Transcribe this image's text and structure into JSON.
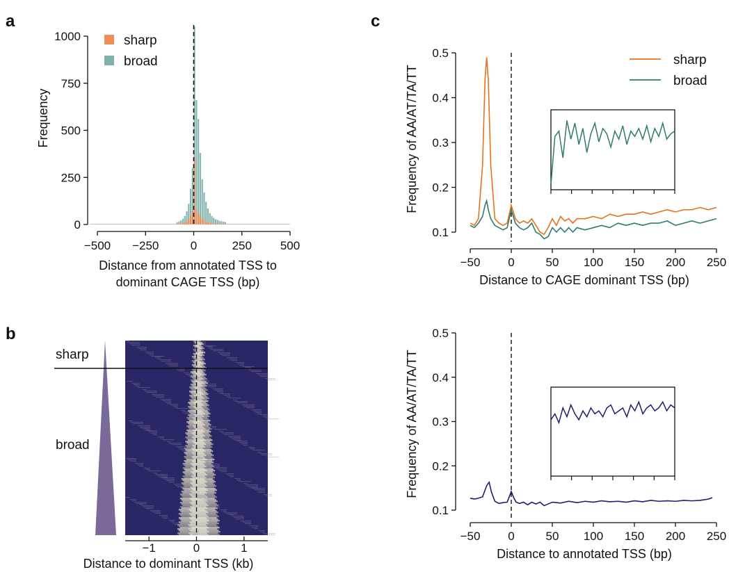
{
  "panels": {
    "a": "a",
    "b": "b",
    "c": "c"
  },
  "colors": {
    "sharp": "#ef8d57",
    "broad": "#7fb2ad",
    "sharp_line": "#e8701d",
    "broad_line": "#2e7a6e",
    "annotated_line": "#1c1f6e",
    "pyramid": "#7a6a9a",
    "heat_low": "#2a2766",
    "heat_high": "#f1ecc7"
  },
  "chart_data": [
    {
      "id": "a",
      "type": "bar",
      "xlabel": "Distance from annotated TSS to\ndominant CAGE TSS (bp)",
      "xlabel_lines": [
        "Distance from annotated TSS to",
        "dominant CAGE TSS (bp)"
      ],
      "ylabel": "Frequency",
      "xlim": [
        -550,
        500
      ],
      "ylim": [
        0,
        1050
      ],
      "xticks": [
        -500,
        -250,
        0,
        250,
        500
      ],
      "xtick_labels": [
        "−500",
        "−250",
        "0",
        "250",
        "500"
      ],
      "yticks": [
        0,
        250,
        500,
        750,
        1000
      ],
      "ytick_labels": [
        "0",
        "250",
        "500",
        "750",
        "1000"
      ],
      "legend": [
        "sharp",
        "broad"
      ],
      "bin_width": 10,
      "x": [
        -90,
        -80,
        -70,
        -60,
        -50,
        -40,
        -30,
        -20,
        -10,
        0,
        10,
        20,
        30,
        40,
        50,
        60,
        70,
        80,
        90,
        100,
        110,
        120,
        130,
        140,
        150,
        160
      ],
      "series": [
        {
          "name": "broad",
          "values": [
            12,
            16,
            22,
            30,
            45,
            70,
            110,
            190,
            300,
            1050,
            660,
            560,
            380,
            240,
            170,
            120,
            85,
            60,
            45,
            35,
            28,
            24,
            20,
            17,
            15,
            13
          ]
        },
        {
          "name": "sharp",
          "values": [
            4,
            5,
            6,
            8,
            12,
            18,
            28,
            45,
            70,
            350,
            80,
            60,
            45,
            30,
            22,
            16,
            12,
            9,
            7,
            6,
            5,
            4,
            4,
            3,
            3,
            3
          ]
        }
      ],
      "reference_line_x": 0
    },
    {
      "id": "b",
      "type": "heatmap",
      "xlabel": "Distance to dominant TSS (kb)",
      "xlim": [
        -1.5,
        1.5
      ],
      "xticks": [
        -1,
        0,
        1
      ],
      "xtick_labels": [
        "−1",
        "0",
        "1"
      ],
      "row_groups": [
        "sharp",
        "broad"
      ],
      "reference_line_x": 0
    },
    {
      "id": "c-top",
      "type": "line",
      "xlabel": "Distance to CAGE dominant TSS (bp)",
      "ylabel": "Frequency of AA/AT/TA/TT",
      "xlim": [
        -50,
        250
      ],
      "ylim": [
        0.1,
        0.5
      ],
      "xticks": [
        -50,
        0,
        50,
        100,
        150,
        200,
        250
      ],
      "xtick_labels": [
        "−50",
        "0",
        "50",
        "100",
        "150",
        "200",
        "250"
      ],
      "yticks": [
        0.1,
        0.2,
        0.3,
        0.4,
        0.5
      ],
      "ytick_labels": [
        "0.1",
        "0.2",
        "0.3",
        "0.4",
        "0.5"
      ],
      "legend": [
        "sharp",
        "broad"
      ],
      "legend_position": "top-right",
      "reference_line_x": 0,
      "x": [
        -50,
        -45,
        -40,
        -35,
        -32,
        -30,
        -28,
        -25,
        -20,
        -15,
        -10,
        -5,
        0,
        5,
        10,
        15,
        20,
        25,
        30,
        35,
        40,
        45,
        50,
        55,
        60,
        65,
        70,
        75,
        80,
        90,
        100,
        110,
        120,
        130,
        140,
        150,
        160,
        170,
        180,
        190,
        200,
        210,
        220,
        230,
        240,
        250
      ],
      "series": [
        {
          "name": "sharp",
          "values": [
            0.12,
            0.115,
            0.13,
            0.25,
            0.44,
            0.49,
            0.44,
            0.25,
            0.13,
            0.12,
            0.115,
            0.12,
            0.16,
            0.13,
            0.12,
            0.125,
            0.12,
            0.13,
            0.115,
            0.1,
            0.095,
            0.11,
            0.13,
            0.115,
            0.135,
            0.125,
            0.13,
            0.12,
            0.13,
            0.13,
            0.135,
            0.13,
            0.14,
            0.135,
            0.14,
            0.14,
            0.145,
            0.14,
            0.145,
            0.15,
            0.145,
            0.15,
            0.15,
            0.155,
            0.15,
            0.155
          ]
        },
        {
          "name": "broad",
          "values": [
            0.115,
            0.11,
            0.12,
            0.135,
            0.16,
            0.17,
            0.15,
            0.13,
            0.115,
            0.11,
            0.105,
            0.11,
            0.15,
            0.12,
            0.11,
            0.105,
            0.11,
            0.12,
            0.1,
            0.095,
            0.085,
            0.09,
            0.11,
            0.1,
            0.11,
            0.1,
            0.11,
            0.1,
            0.11,
            0.105,
            0.11,
            0.115,
            0.11,
            0.12,
            0.115,
            0.12,
            0.115,
            0.12,
            0.12,
            0.125,
            0.115,
            0.12,
            0.125,
            0.12,
            0.125,
            0.13
          ]
        }
      ],
      "inset": {
        "series": "broad",
        "values": [
          0.1,
          0.28,
          0.3,
          0.2,
          0.34,
          0.27,
          0.33,
          0.25,
          0.31,
          0.22,
          0.29,
          0.33,
          0.26,
          0.31,
          0.29,
          0.24,
          0.3,
          0.27,
          0.32,
          0.25,
          0.3,
          0.28,
          0.31,
          0.27,
          0.32,
          0.26,
          0.31,
          0.28,
          0.33,
          0.27,
          0.29,
          0.3
        ]
      }
    },
    {
      "id": "c-bottom",
      "type": "line",
      "xlabel": "Distance to annotated TSS (bp)",
      "ylabel": "Frequency of AA/AT/TA/TT",
      "xlim": [
        -50,
        250
      ],
      "ylim": [
        0.1,
        0.5
      ],
      "xticks": [
        -50,
        0,
        50,
        100,
        150,
        200,
        250
      ],
      "xtick_labels": [
        "−50",
        "0",
        "50",
        "100",
        "150",
        "200",
        "250"
      ],
      "yticks": [
        0.1,
        0.2,
        0.3,
        0.4,
        0.5
      ],
      "ytick_labels": [
        "0.1",
        "0.2",
        "0.3",
        "0.4",
        "0.5"
      ],
      "reference_line_x": 0,
      "x": [
        -50,
        -45,
        -40,
        -35,
        -30,
        -27,
        -24,
        -20,
        -15,
        -10,
        -5,
        0,
        3,
        6,
        10,
        15,
        20,
        25,
        30,
        35,
        40,
        45,
        50,
        60,
        70,
        80,
        90,
        100,
        110,
        120,
        130,
        140,
        150,
        160,
        170,
        180,
        190,
        200,
        210,
        220,
        230,
        240,
        245
      ],
      "series": [
        {
          "name": "annotated",
          "values": [
            0.127,
            0.125,
            0.127,
            0.13,
            0.155,
            0.163,
            0.14,
            0.12,
            0.115,
            0.117,
            0.118,
            0.142,
            0.128,
            0.118,
            0.115,
            0.118,
            0.112,
            0.118,
            0.114,
            0.118,
            0.11,
            0.114,
            0.118,
            0.116,
            0.12,
            0.117,
            0.12,
            0.118,
            0.121,
            0.119,
            0.12,
            0.118,
            0.121,
            0.119,
            0.122,
            0.12,
            0.121,
            0.12,
            0.122,
            0.121,
            0.122,
            0.125,
            0.128
          ]
        }
      ],
      "inset": {
        "series": "annotated",
        "values": [
          0.27,
          0.29,
          0.26,
          0.31,
          0.28,
          0.32,
          0.29,
          0.27,
          0.3,
          0.28,
          0.31,
          0.29,
          0.3,
          0.28,
          0.31,
          0.32,
          0.29,
          0.3,
          0.31,
          0.28,
          0.32,
          0.3,
          0.33,
          0.29,
          0.31,
          0.32,
          0.3,
          0.31,
          0.33,
          0.3,
          0.32,
          0.31
        ]
      }
    }
  ]
}
